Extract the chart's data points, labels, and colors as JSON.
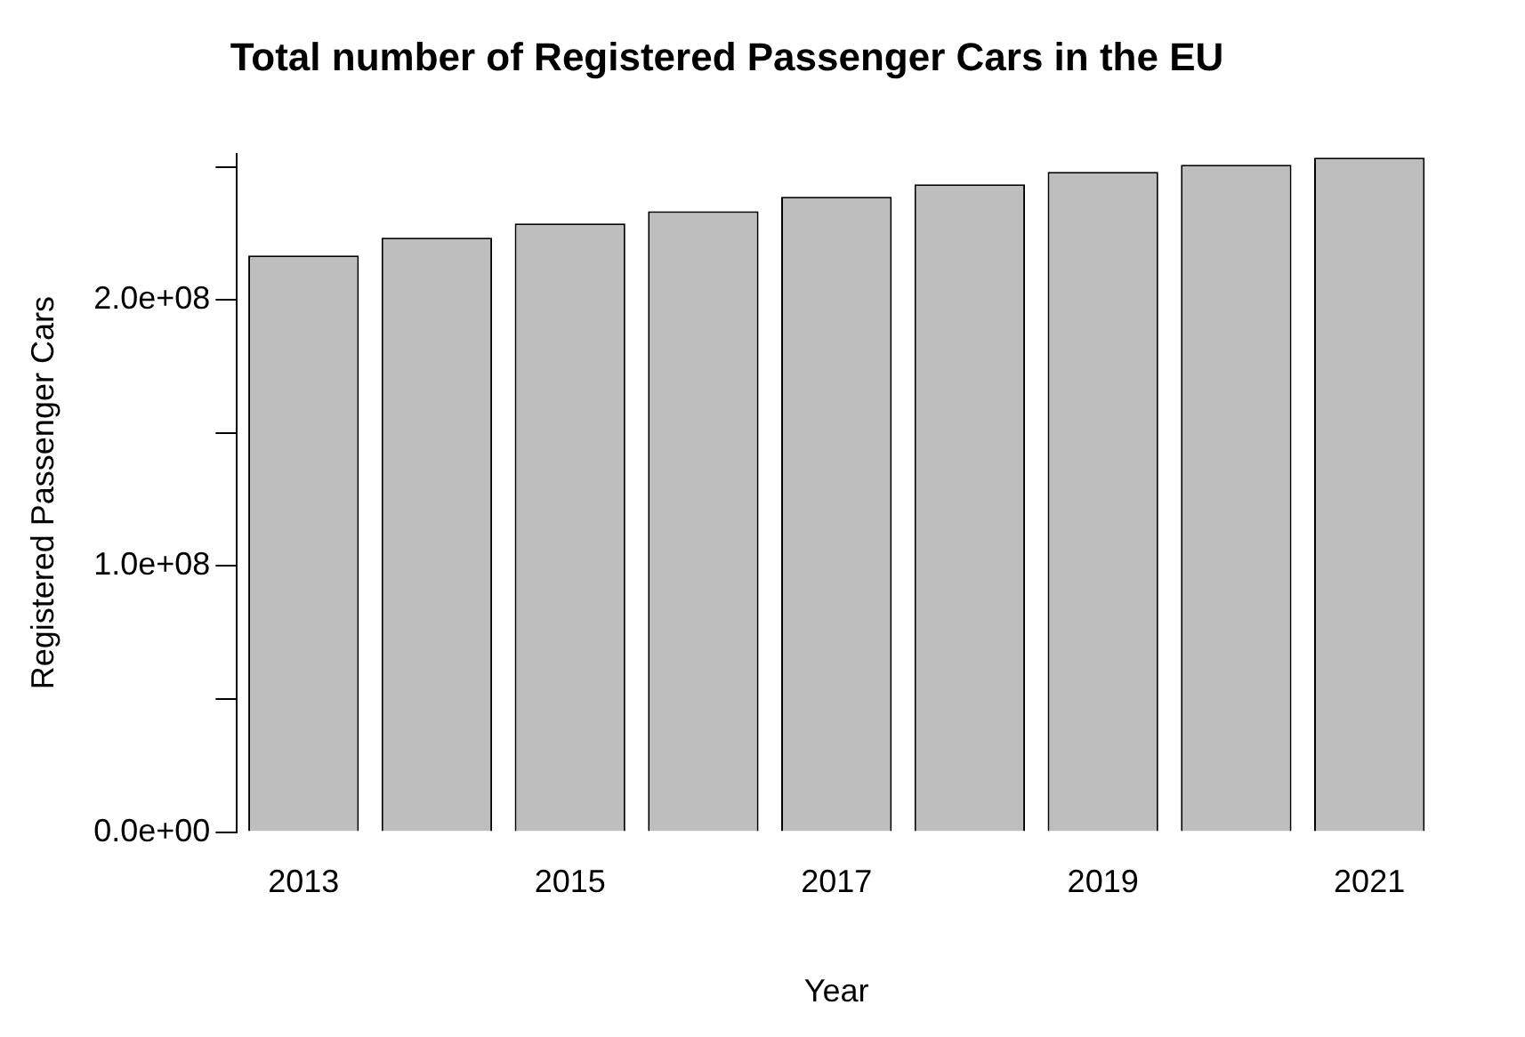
{
  "chart_data": {
    "type": "bar",
    "title": "Total number of Registered Passenger Cars in the EU",
    "xlabel": "Year",
    "ylabel": "Registered Passenger Cars",
    "categories": [
      "2013",
      null,
      "2015",
      null,
      "2017",
      null,
      "2019",
      null,
      "2021"
    ],
    "values": [
      216700000,
      223400000,
      228800000,
      233400000,
      238800000,
      243500000,
      248200000,
      250800000,
      253500000
    ],
    "color": "#bebebe",
    "ylim": [
      0,
      255000000
    ],
    "yticks": [
      {
        "value": 0,
        "label": "0.0e+00"
      },
      {
        "value": 50000000,
        "label": null
      },
      {
        "value": 100000000,
        "label": "1.0e+08"
      },
      {
        "value": 150000000,
        "label": null
      },
      {
        "value": 200000000,
        "label": "2.0e+08"
      },
      {
        "value": 250000000,
        "label": null
      }
    ],
    "grid": false,
    "legend": false
  }
}
